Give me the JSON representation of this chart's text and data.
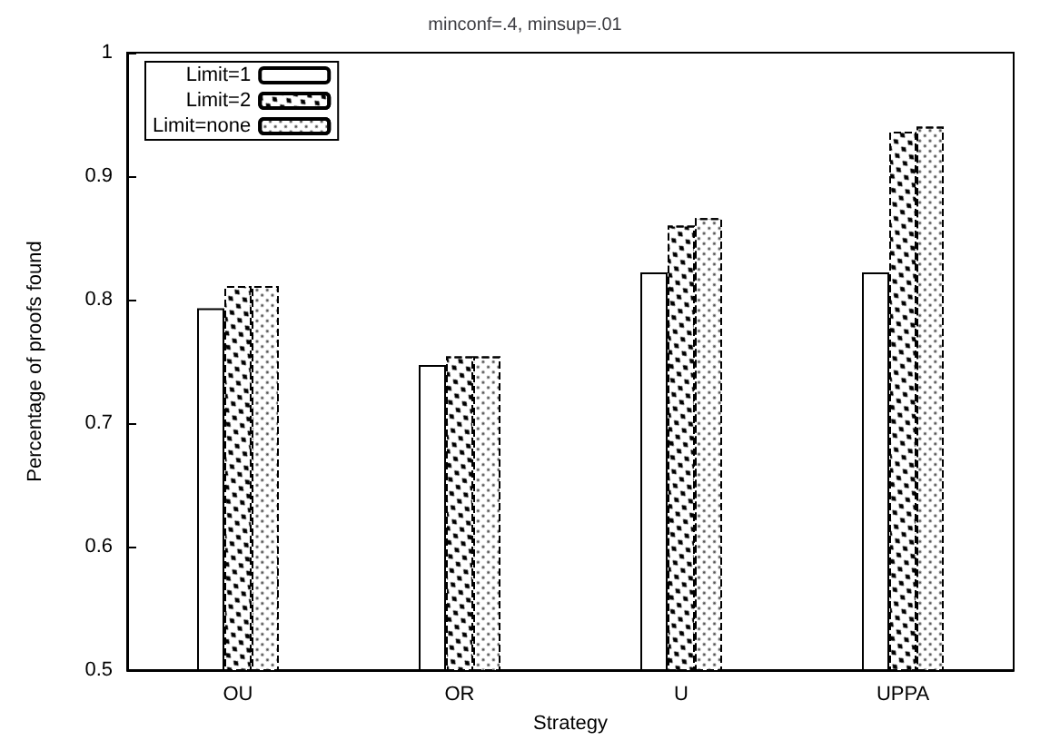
{
  "chart_data": {
    "type": "bar",
    "title": "minconf=.4, minsup=.01",
    "xlabel": "Strategy",
    "ylabel": "Percentage of proofs found",
    "categories": [
      "OU",
      "OR",
      "U",
      "UPPA"
    ],
    "series": [
      {
        "name": "Limit=1",
        "color": "#ffffff",
        "values": [
          0.793,
          0.747,
          0.822,
          0.822
        ]
      },
      {
        "name": "Limit=2",
        "color": "#ffffff",
        "values": [
          0.811,
          0.754,
          0.86,
          0.936
        ]
      },
      {
        "name": "Limit=none",
        "color": "#ffffff",
        "values": [
          0.811,
          0.754,
          0.866,
          0.94
        ]
      }
    ],
    "ylim": [
      0.5,
      1
    ],
    "yticks": [
      0.5,
      0.6,
      0.7,
      0.8,
      0.9,
      1
    ],
    "grid": false,
    "legend": "top left"
  }
}
